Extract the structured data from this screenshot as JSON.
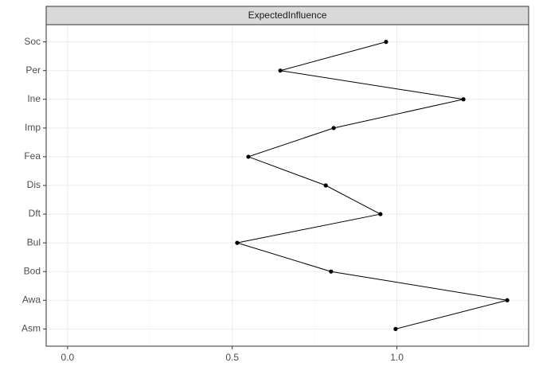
{
  "chart_data": {
    "type": "line",
    "title": "ExpectedInfluence",
    "categories": [
      "Asm",
      "Awa",
      "Bod",
      "Bul",
      "Dft",
      "Dis",
      "Fea",
      "Imp",
      "Ine",
      "Per",
      "Soc"
    ],
    "values": [
      0.996,
      1.335,
      0.8,
      0.515,
      0.95,
      0.784,
      0.549,
      0.808,
      1.202,
      0.646,
      0.967
    ],
    "color": "#000000",
    "xlim": [
      -0.065,
      1.4
    ],
    "xticks": [
      {
        "value": 0,
        "label": "0.0"
      },
      {
        "value": 0.5,
        "label": "0.5"
      },
      {
        "value": 1,
        "label": "1.0"
      }
    ],
    "xminorticks": [
      0.25,
      0.75,
      1.25
    ],
    "grid": true
  }
}
